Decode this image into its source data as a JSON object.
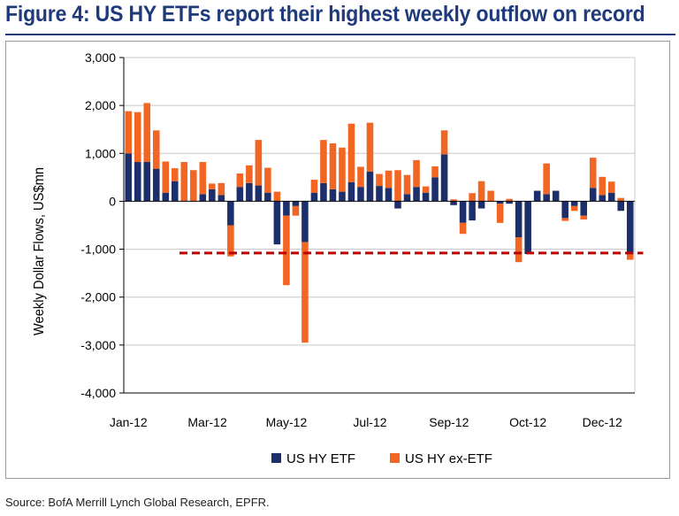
{
  "title": "Figure 4: US HY ETFs report their highest weekly outflow on record",
  "source": "Source: BofA Merrill Lynch Global Research, EPFR.",
  "colors": {
    "etf": "#1c2f6b",
    "ex_etf": "#f26522",
    "reference_line": "#c00000",
    "grid": "#c8c8c8",
    "title": "#1f3a7a"
  },
  "chart_data": {
    "type": "bar",
    "stacked": true,
    "ylabel": "Weekly Dollar Flows, US$mn",
    "xlabel": "",
    "ylim": [
      -4000,
      3000
    ],
    "yticks": [
      3000,
      2000,
      1000,
      0,
      -1000,
      -2000,
      -3000,
      -4000
    ],
    "ytick_labels": [
      "3,000",
      "2,000",
      "1,000",
      "0",
      "-1,000",
      "-2,000",
      "-3,000",
      "-4,000"
    ],
    "xtick_labels": [
      "Jan-12",
      "Mar-12",
      "May-12",
      "Jul-12",
      "Sep-12",
      "Oct-12",
      "Dec-12"
    ],
    "xtick_positions": [
      0,
      8.5,
      17,
      26,
      34.5,
      43,
      51
    ],
    "legend_position": "bottom",
    "reference_line": {
      "value": -1080,
      "from_index": 6,
      "to_index": 55,
      "style": "dashed"
    },
    "series": [
      {
        "name": "US HY ETF",
        "values": [
          1000,
          820,
          820,
          680,
          180,
          420,
          0,
          0,
          150,
          250,
          130,
          -500,
          300,
          380,
          330,
          180,
          -900,
          -300,
          -100,
          -850,
          180,
          380,
          250,
          200,
          400,
          300,
          620,
          320,
          280,
          -150,
          150,
          300,
          180,
          500,
          980,
          -80,
          -450,
          -400,
          -150,
          0,
          -50,
          -50,
          -750,
          -1100,
          220,
          150,
          220,
          -350,
          -100,
          -300,
          280,
          130,
          180,
          -200,
          -1100
        ]
      },
      {
        "name": "US HY ex-ETF",
        "values": [
          880,
          1040,
          1230,
          800,
          650,
          270,
          820,
          650,
          670,
          120,
          250,
          -650,
          280,
          370,
          950,
          520,
          200,
          -1450,
          -200,
          -2100,
          270,
          900,
          960,
          920,
          1220,
          420,
          1020,
          250,
          360,
          650,
          400,
          560,
          130,
          230,
          500,
          40,
          -230,
          170,
          420,
          220,
          -400,
          50,
          -520,
          0,
          0,
          640,
          0,
          -60,
          -100,
          -80,
          630,
          380,
          230,
          70,
          -120
        ]
      }
    ]
  }
}
